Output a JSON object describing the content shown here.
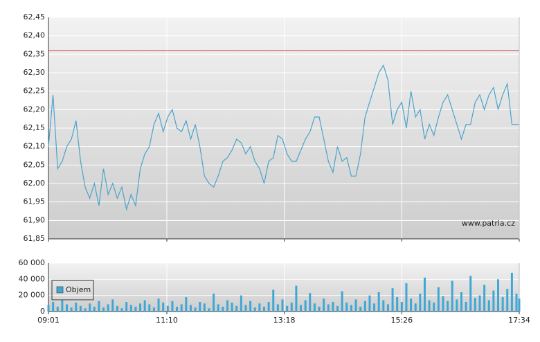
{
  "chart_data": [
    {
      "type": "line",
      "x": [
        "09:01",
        "09:06",
        "09:11",
        "09:16",
        "09:21",
        "09:26",
        "09:31",
        "09:36",
        "09:41",
        "09:46",
        "09:51",
        "09:56",
        "10:01",
        "10:06",
        "10:11",
        "10:16",
        "10:21",
        "10:26",
        "10:31",
        "10:36",
        "10:41",
        "10:46",
        "10:51",
        "10:56",
        "11:01",
        "11:06",
        "11:11",
        "11:16",
        "11:21",
        "11:26",
        "11:31",
        "11:36",
        "11:41",
        "11:46",
        "11:51",
        "11:56",
        "12:01",
        "12:06",
        "12:11",
        "12:16",
        "12:21",
        "12:26",
        "12:31",
        "12:36",
        "12:41",
        "12:46",
        "12:51",
        "12:56",
        "13:01",
        "13:06",
        "13:11",
        "13:16",
        "13:21",
        "13:26",
        "13:31",
        "13:36",
        "13:41",
        "13:46",
        "13:51",
        "13:56",
        "14:01",
        "14:06",
        "14:11",
        "14:16",
        "14:21",
        "14:26",
        "14:31",
        "14:36",
        "14:41",
        "14:46",
        "14:51",
        "14:56",
        "15:01",
        "15:06",
        "15:11",
        "15:16",
        "15:21",
        "15:26",
        "15:31",
        "15:36",
        "15:41",
        "15:46",
        "15:51",
        "15:56",
        "16:01",
        "16:06",
        "16:11",
        "16:16",
        "16:21",
        "16:26",
        "16:31",
        "16:36",
        "16:41",
        "16:46",
        "16:51",
        "16:56",
        "17:01",
        "17:06",
        "17:11",
        "17:16",
        "17:21",
        "17:26",
        "17:31",
        "17:34"
      ],
      "values": [
        62.1,
        62.24,
        62.04,
        62.06,
        62.1,
        62.12,
        62.17,
        62.06,
        61.99,
        61.96,
        62.0,
        61.94,
        62.04,
        61.97,
        62.0,
        61.96,
        61.99,
        61.93,
        61.97,
        61.94,
        62.04,
        62.08,
        62.1,
        62.16,
        62.19,
        62.14,
        62.18,
        62.2,
        62.15,
        62.14,
        62.17,
        62.12,
        62.16,
        62.1,
        62.02,
        62.0,
        61.99,
        62.02,
        62.06,
        62.07,
        62.09,
        62.12,
        62.11,
        62.08,
        62.1,
        62.06,
        62.04,
        62.0,
        62.06,
        62.07,
        62.13,
        62.12,
        62.08,
        62.06,
        62.06,
        62.09,
        62.12,
        62.14,
        62.18,
        62.18,
        62.12,
        62.06,
        62.03,
        62.1,
        62.06,
        62.07,
        62.02,
        62.02,
        62.08,
        62.18,
        62.22,
        62.26,
        62.3,
        62.32,
        62.28,
        62.16,
        62.2,
        62.22,
        62.15,
        62.25,
        62.18,
        62.2,
        62.12,
        62.16,
        62.13,
        62.18,
        62.22,
        62.24,
        62.2,
        62.16,
        62.12,
        62.16,
        62.16,
        62.22,
        62.24,
        62.2,
        62.24,
        62.26,
        62.2,
        62.24,
        62.27,
        62.16,
        62.16,
        62.16
      ],
      "color": "#4aa3cc",
      "xlim": [
        "09:01",
        "17:34"
      ],
      "xticks": [
        "09:01",
        "11:10",
        "13:18",
        "15:26",
        "17:34"
      ],
      "ylim": [
        61.85,
        62.45
      ],
      "yticks": [
        {
          "value": 61.85,
          "label": "61,85"
        },
        {
          "value": 61.9,
          "label": "61,90"
        },
        {
          "value": 61.95,
          "label": "61,95"
        },
        {
          "value": 62.0,
          "label": "62,00"
        },
        {
          "value": 62.05,
          "label": "62,05"
        },
        {
          "value": 62.1,
          "label": "62,10"
        },
        {
          "value": 62.15,
          "label": "62,15"
        },
        {
          "value": 62.2,
          "label": "62,20"
        },
        {
          "value": 62.25,
          "label": "62,25"
        },
        {
          "value": 62.3,
          "label": "62,30"
        },
        {
          "value": 62.35,
          "label": "62,35"
        },
        {
          "value": 62.4,
          "label": "62,40"
        },
        {
          "value": 62.45,
          "label": "62,45"
        }
      ],
      "reference_line": {
        "value": 62.36,
        "color": "#cc3333"
      },
      "watermark": "www.patria.cz",
      "grid": true
    },
    {
      "type": "bar",
      "x": [
        "09:01",
        "09:06",
        "09:11",
        "09:16",
        "09:21",
        "09:26",
        "09:31",
        "09:36",
        "09:41",
        "09:46",
        "09:51",
        "09:56",
        "10:01",
        "10:06",
        "10:11",
        "10:16",
        "10:21",
        "10:26",
        "10:31",
        "10:36",
        "10:41",
        "10:46",
        "10:51",
        "10:56",
        "11:01",
        "11:06",
        "11:11",
        "11:16",
        "11:21",
        "11:26",
        "11:31",
        "11:36",
        "11:41",
        "11:46",
        "11:51",
        "11:56",
        "12:01",
        "12:06",
        "12:11",
        "12:16",
        "12:21",
        "12:26",
        "12:31",
        "12:36",
        "12:41",
        "12:46",
        "12:51",
        "12:56",
        "13:01",
        "13:06",
        "13:11",
        "13:16",
        "13:21",
        "13:26",
        "13:31",
        "13:36",
        "13:41",
        "13:46",
        "13:51",
        "13:56",
        "14:01",
        "14:06",
        "14:11",
        "14:16",
        "14:21",
        "14:26",
        "14:31",
        "14:36",
        "14:41",
        "14:46",
        "14:51",
        "14:56",
        "15:01",
        "15:06",
        "15:11",
        "15:16",
        "15:21",
        "15:26",
        "15:31",
        "15:36",
        "15:41",
        "15:46",
        "15:51",
        "15:56",
        "16:01",
        "16:06",
        "16:11",
        "16:16",
        "16:21",
        "16:26",
        "16:31",
        "16:36",
        "16:41",
        "16:46",
        "16:51",
        "16:56",
        "17:01",
        "17:06",
        "17:11",
        "17:16",
        "17:21",
        "17:26",
        "17:31",
        "17:34"
      ],
      "series": [
        {
          "name": "Objem",
          "color": "#3fa7d6",
          "values": [
            8000,
            12000,
            6000,
            14000,
            9000,
            5000,
            11000,
            7000,
            4000,
            10000,
            6000,
            13000,
            5000,
            9000,
            15000,
            7000,
            4000,
            12000,
            8000,
            6000,
            10000,
            14000,
            9000,
            5000,
            16000,
            11000,
            7000,
            13000,
            6000,
            9000,
            18000,
            8000,
            5000,
            12000,
            10000,
            4000,
            22000,
            9000,
            6000,
            14000,
            11000,
            7000,
            20000,
            8000,
            13000,
            5000,
            10000,
            6000,
            12000,
            27000,
            9000,
            15000,
            7000,
            11000,
            32000,
            8000,
            14000,
            23000,
            10000,
            6000,
            16000,
            9000,
            12000,
            7000,
            25000,
            11000,
            8000,
            15000,
            6000,
            13000,
            20000,
            10000,
            24000,
            14000,
            9000,
            29000,
            18000,
            12000,
            35000,
            16000,
            10000,
            22000,
            42000,
            14000,
            11000,
            30000,
            19000,
            13000,
            38000,
            15000,
            24000,
            12000,
            44000,
            17000,
            20000,
            33000,
            14000,
            26000,
            40000,
            18000,
            28000,
            48000,
            22000,
            16000
          ]
        }
      ],
      "xlim": [
        "09:01",
        "17:34"
      ],
      "xticks": [
        "09:01",
        "11:10",
        "13:18",
        "15:26",
        "17:34"
      ],
      "ylim": [
        0,
        60000
      ],
      "yticks": [
        0,
        {
          "value": 20000,
          "label": "20 000"
        },
        {
          "value": 40000,
          "label": "40 000"
        },
        {
          "value": 60000,
          "label": "60 000"
        }
      ],
      "legend": "upper left",
      "grid": true
    }
  ]
}
